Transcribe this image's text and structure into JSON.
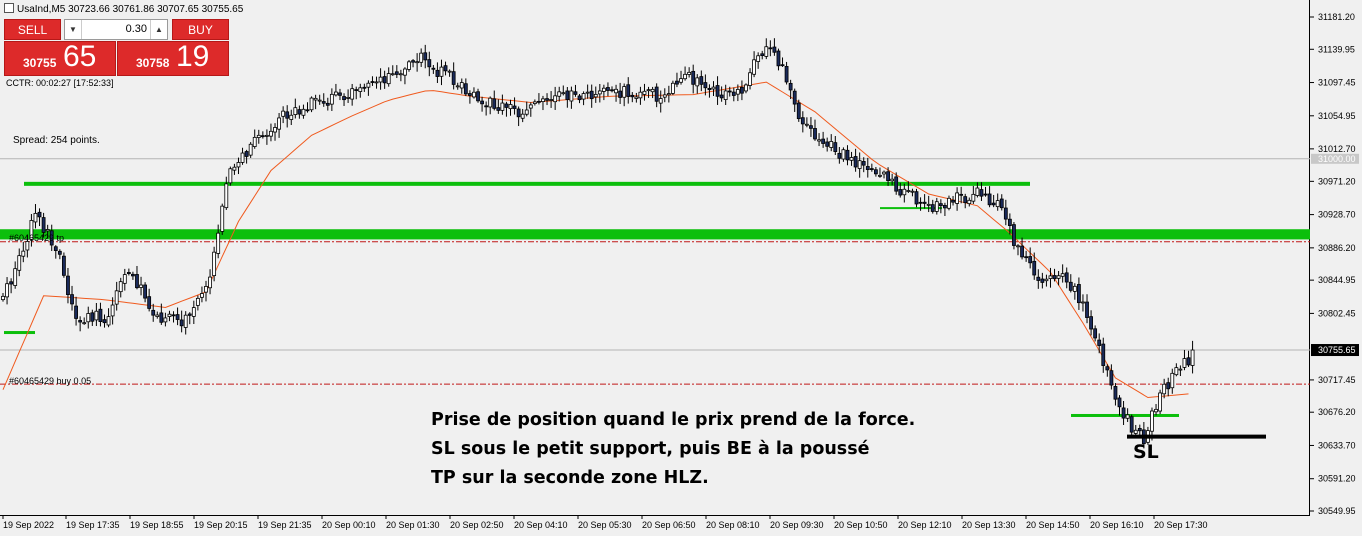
{
  "header": {
    "symbol_line": "UsaInd,M5  30723.66 30761.86 30707.65 30755.65"
  },
  "trade_panel": {
    "sell_label": "SELL",
    "buy_label": "BUY",
    "lot": "0.30",
    "sell_price_small": "30755",
    "sell_price_big": "65",
    "buy_price_small": "30758",
    "buy_price_big": "19",
    "accent_color": "#dd2a2a"
  },
  "info": {
    "ctr": "CCTR: 00:02:27 [17:52:33]",
    "spread": "Spread: 254 points."
  },
  "orders": {
    "tp_label": "#60465429 tp",
    "buy_label": "#60465429 buy 0.05"
  },
  "annotation": {
    "line1": "Prise de position quand le prix prend de la force.",
    "line2": "SL sous le petit support, puis BE à la poussé",
    "line3": "TP sur la seconde zone HLZ.",
    "sl_label": "SL"
  },
  "chart_data": {
    "type": "candlestick",
    "y_ticks": [
      "31181.20",
      "31139.95",
      "31097.45",
      "31054.95",
      "31012.70",
      "30971.20",
      "30928.70",
      "30886.20",
      "30844.95",
      "30802.45",
      "30717.45",
      "30676.20",
      "30633.70",
      "30591.20",
      "30549.95"
    ],
    "y_range": [
      30549.95,
      31181.2
    ],
    "round_level_label": "31000.00",
    "current_price_label": "30755.65",
    "current_price": 30755.65,
    "x_labels": [
      "19 Sep 2022",
      "19 Sep 17:35",
      "19 Sep 18:55",
      "19 Sep 20:15",
      "19 Sep 21:35",
      "20 Sep 00:10",
      "20 Sep 01:30",
      "20 Sep 02:50",
      "20 Sep 04:10",
      "20 Sep 05:30",
      "20 Sep 06:50",
      "20 Sep 08:10",
      "20 Sep 09:30",
      "20 Sep 10:50",
      "20 Sep 12:10",
      "20 Sep 13:30",
      "20 Sep 14:50",
      "20 Sep 16:10",
      "20 Sep 17:30"
    ],
    "levels": {
      "round_level": 31000,
      "take_profit": 30894,
      "entry_buy": 30712,
      "hlz_zone_1": 30968,
      "hlz_zone_2_low": 30897,
      "hlz_zone_2_high": 30910
    },
    "candle_close_anchors": [
      [
        0,
        30820
      ],
      [
        8,
        30930
      ],
      [
        13,
        30890
      ],
      [
        18,
        30790
      ],
      [
        26,
        30800
      ],
      [
        30,
        30860
      ],
      [
        38,
        30800
      ],
      [
        44,
        30790
      ],
      [
        50,
        30830
      ],
      [
        56,
        30985
      ],
      [
        62,
        31020
      ],
      [
        70,
        31060
      ],
      [
        80,
        31075
      ],
      [
        88,
        31085
      ],
      [
        95,
        31100
      ],
      [
        102,
        31130
      ],
      [
        108,
        31110
      ],
      [
        114,
        31090
      ],
      [
        120,
        31070
      ],
      [
        126,
        31060
      ],
      [
        132,
        31075
      ],
      [
        140,
        31080
      ],
      [
        148,
        31085
      ],
      [
        155,
        31085
      ],
      [
        162,
        31080
      ],
      [
        168,
        31105
      ],
      [
        175,
        31085
      ],
      [
        182,
        31090
      ],
      [
        188,
        31150
      ],
      [
        192,
        31115
      ],
      [
        196,
        31060
      ],
      [
        200,
        31030
      ],
      [
        205,
        31010
      ],
      [
        211,
        30990
      ],
      [
        218,
        30975
      ],
      [
        222,
        30958
      ],
      [
        228,
        30940
      ],
      [
        234,
        30945
      ],
      [
        240,
        30960
      ],
      [
        246,
        30935
      ],
      [
        250,
        30885
      ],
      [
        256,
        30840
      ],
      [
        262,
        30850
      ],
      [
        267,
        30800
      ],
      [
        272,
        30725
      ],
      [
        277,
        30665
      ],
      [
        281,
        30640
      ],
      [
        285,
        30700
      ],
      [
        290,
        30735
      ],
      [
        293,
        30740
      ]
    ],
    "ema_anchors": [
      [
        0,
        30705
      ],
      [
        10,
        30825
      ],
      [
        25,
        30820
      ],
      [
        40,
        30810
      ],
      [
        50,
        30830
      ],
      [
        58,
        30920
      ],
      [
        66,
        30985
      ],
      [
        76,
        31030
      ],
      [
        86,
        31055
      ],
      [
        95,
        31075
      ],
      [
        105,
        31088
      ],
      [
        115,
        31080
      ],
      [
        130,
        31072
      ],
      [
        150,
        31080
      ],
      [
        170,
        31082
      ],
      [
        188,
        31098
      ],
      [
        200,
        31060
      ],
      [
        215,
        30995
      ],
      [
        228,
        30955
      ],
      [
        240,
        30940
      ],
      [
        248,
        30905
      ],
      [
        258,
        30855
      ],
      [
        266,
        30790
      ],
      [
        274,
        30720
      ],
      [
        282,
        30695
      ],
      [
        293,
        30700
      ]
    ]
  }
}
